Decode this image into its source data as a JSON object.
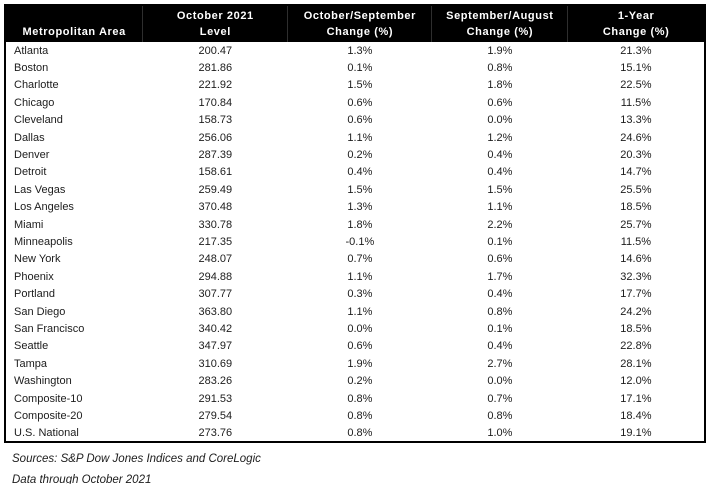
{
  "table": {
    "title_semantic": "home-price-index-by-metro-area",
    "columns": [
      {
        "line1": "",
        "line2": "Metropolitan Area"
      },
      {
        "line1": "October 2021",
        "line2": "Level"
      },
      {
        "line1": "October/September",
        "line2": "Change (%)"
      },
      {
        "line1": "September/August",
        "line2": "Change (%)"
      },
      {
        "line1": "1-Year",
        "line2": "Change (%)"
      }
    ],
    "rows": [
      {
        "area": "Atlanta",
        "level": "200.47",
        "oct_sep": "1.3%",
        "sep_aug": "1.9%",
        "one_year": "21.3%"
      },
      {
        "area": "Boston",
        "level": "281.86",
        "oct_sep": "0.1%",
        "sep_aug": "0.8%",
        "one_year": "15.1%"
      },
      {
        "area": "Charlotte",
        "level": "221.92",
        "oct_sep": "1.5%",
        "sep_aug": "1.8%",
        "one_year": "22.5%"
      },
      {
        "area": "Chicago",
        "level": "170.84",
        "oct_sep": "0.6%",
        "sep_aug": "0.6%",
        "one_year": "11.5%"
      },
      {
        "area": "Cleveland",
        "level": "158.73",
        "oct_sep": "0.6%",
        "sep_aug": "0.0%",
        "one_year": "13.3%"
      },
      {
        "area": "Dallas",
        "level": "256.06",
        "oct_sep": "1.1%",
        "sep_aug": "1.2%",
        "one_year": "24.6%"
      },
      {
        "area": "Denver",
        "level": "287.39",
        "oct_sep": "0.2%",
        "sep_aug": "0.4%",
        "one_year": "20.3%"
      },
      {
        "area": "Detroit",
        "level": "158.61",
        "oct_sep": "0.4%",
        "sep_aug": "0.4%",
        "one_year": "14.7%"
      },
      {
        "area": "Las Vegas",
        "level": "259.49",
        "oct_sep": "1.5%",
        "sep_aug": "1.5%",
        "one_year": "25.5%"
      },
      {
        "area": "Los Angeles",
        "level": "370.48",
        "oct_sep": "1.3%",
        "sep_aug": "1.1%",
        "one_year": "18.5%"
      },
      {
        "area": "Miami",
        "level": "330.78",
        "oct_sep": "1.8%",
        "sep_aug": "2.2%",
        "one_year": "25.7%"
      },
      {
        "area": "Minneapolis",
        "level": "217.35",
        "oct_sep": "-0.1%",
        "sep_aug": "0.1%",
        "one_year": "11.5%"
      },
      {
        "area": "New York",
        "level": "248.07",
        "oct_sep": "0.7%",
        "sep_aug": "0.6%",
        "one_year": "14.6%"
      },
      {
        "area": "Phoenix",
        "level": "294.88",
        "oct_sep": "1.1%",
        "sep_aug": "1.7%",
        "one_year": "32.3%"
      },
      {
        "area": "Portland",
        "level": "307.77",
        "oct_sep": "0.3%",
        "sep_aug": "0.4%",
        "one_year": "17.7%"
      },
      {
        "area": "San Diego",
        "level": "363.80",
        "oct_sep": "1.1%",
        "sep_aug": "0.8%",
        "one_year": "24.2%"
      },
      {
        "area": "San Francisco",
        "level": "340.42",
        "oct_sep": "0.0%",
        "sep_aug": "0.1%",
        "one_year": "18.5%"
      },
      {
        "area": "Seattle",
        "level": "347.97",
        "oct_sep": "0.6%",
        "sep_aug": "0.4%",
        "one_year": "22.8%"
      },
      {
        "area": "Tampa",
        "level": "310.69",
        "oct_sep": "1.9%",
        "sep_aug": "2.7%",
        "one_year": "28.1%"
      },
      {
        "area": "Washington",
        "level": "283.26",
        "oct_sep": "0.2%",
        "sep_aug": "0.0%",
        "one_year": "12.0%"
      },
      {
        "area": "Composite-10",
        "level": "291.53",
        "oct_sep": "0.8%",
        "sep_aug": "0.7%",
        "one_year": "17.1%"
      },
      {
        "area": "Composite-20",
        "level": "279.54",
        "oct_sep": "0.8%",
        "sep_aug": "0.8%",
        "one_year": "18.4%"
      },
      {
        "area": "U.S. National",
        "level": "273.76",
        "oct_sep": "0.8%",
        "sep_aug": "1.0%",
        "one_year": "19.1%"
      }
    ]
  },
  "footer": {
    "line1": "Sources: S&P Dow Jones Indices and CoreLogic",
    "line2": "Data through October 2021"
  },
  "colors": {
    "header_bg": "#000000",
    "header_text": "#ffffff",
    "body_text": "#1c1c1c",
    "border": "#000000",
    "page_bg": "#ffffff"
  }
}
